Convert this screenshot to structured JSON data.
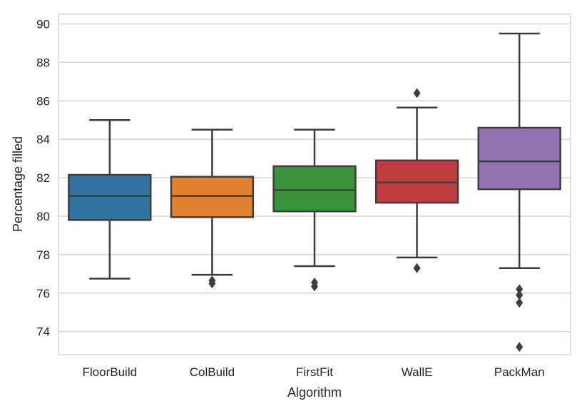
{
  "chart_data": {
    "type": "box",
    "title": "",
    "xlabel": "Algorithm",
    "ylabel": "Percentage filled",
    "ylim": [
      72.8,
      90.5
    ],
    "yticks": [
      74,
      76,
      78,
      80,
      82,
      84,
      86,
      88,
      90
    ],
    "grid": true,
    "categories": [
      "FloorBuild",
      "ColBuild",
      "FirstFit",
      "WallE",
      "PackMan"
    ],
    "boxes": [
      {
        "name": "FloorBuild",
        "color": "#3274a1",
        "whisker_low": 76.75,
        "q1": 79.8,
        "median": 81.05,
        "q3": 82.15,
        "whisker_high": 85.0,
        "outliers": []
      },
      {
        "name": "ColBuild",
        "color": "#e1812c",
        "whisker_low": 76.95,
        "q1": 79.95,
        "median": 81.05,
        "q3": 82.05,
        "whisker_high": 84.5,
        "outliers": [
          76.5,
          76.65
        ]
      },
      {
        "name": "FirstFit",
        "color": "#3a923a",
        "whisker_low": 77.4,
        "q1": 80.25,
        "median": 81.35,
        "q3": 82.6,
        "whisker_high": 84.5,
        "outliers": [
          76.35,
          76.55
        ]
      },
      {
        "name": "WallE",
        "color": "#c03d3e",
        "whisker_low": 77.85,
        "q1": 80.7,
        "median": 81.75,
        "q3": 82.9,
        "whisker_high": 85.65,
        "outliers": [
          77.3,
          86.4
        ]
      },
      {
        "name": "PackMan",
        "color": "#9372b2",
        "whisker_low": 77.3,
        "q1": 81.4,
        "median": 82.85,
        "q3": 84.6,
        "whisker_high": 89.5,
        "outliers": [
          76.2,
          75.9,
          75.5,
          73.2
        ]
      }
    ],
    "colors": {
      "grid": "#d5d5d5",
      "frame": "#d5d5d5",
      "line": "#3d3d3d",
      "text": "#262626"
    }
  }
}
